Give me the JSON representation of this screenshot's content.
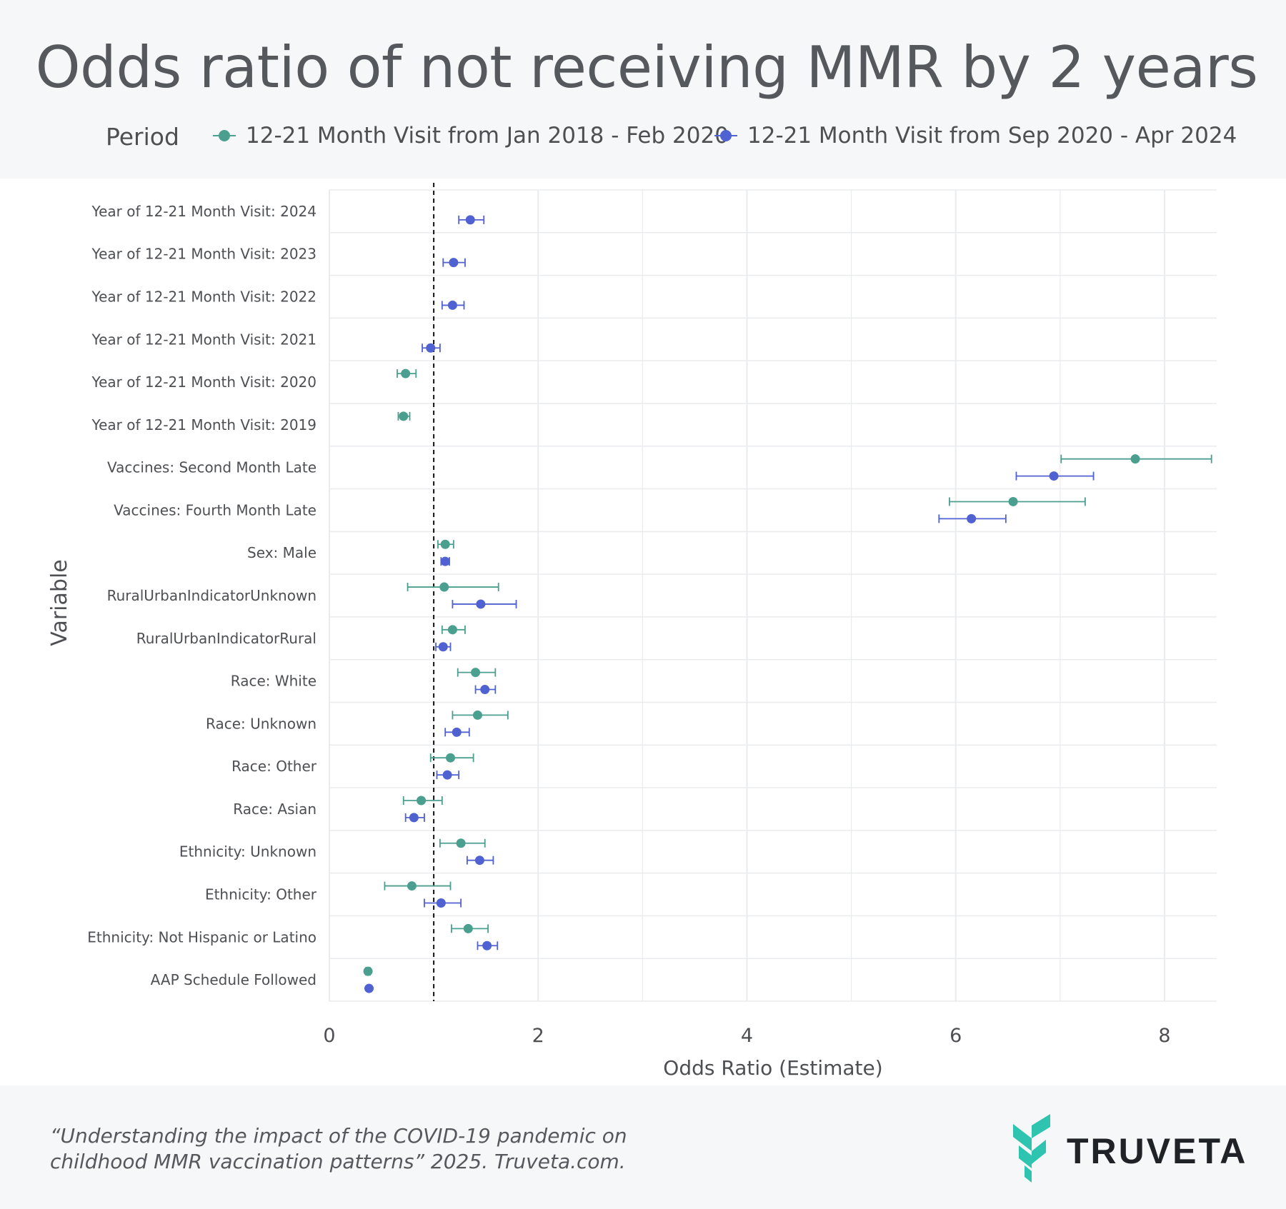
{
  "title": "Odds ratio of not receiving MMR by 2 years",
  "legend": {
    "title": "Period",
    "series_a_label": "12-21 Month Visit from Jan 2018 - Feb 2020",
    "series_b_label": "12-21 Month Visit from Sep 2020 - Apr 2024"
  },
  "colors": {
    "series_a": "#4b9f8f",
    "series_b": "#5061d2",
    "reference_line": "#111111",
    "grid": "#e9ebee"
  },
  "chart_data": {
    "type": "scatter",
    "subtype": "forest-plot",
    "title": "Odds ratio of not receiving MMR by 2 years",
    "xlabel": "Odds Ratio (Estimate)",
    "ylabel": "Variable",
    "xlim": [
      0,
      8.5
    ],
    "xticks": [
      0,
      2,
      4,
      6,
      8
    ],
    "reference_x": 1,
    "grid": true,
    "legend_position": "top",
    "categories": [
      "Year of 12-21 Month Visit: 2024",
      "Year of 12-21 Month Visit: 2023",
      "Year of 12-21 Month Visit: 2022",
      "Year of 12-21 Month Visit: 2021",
      "Year of 12-21 Month Visit: 2020",
      "Year of 12-21 Month Visit: 2019",
      "Vaccines: Second Month Late",
      "Vaccines: Fourth Month Late",
      "Sex: Male",
      "RuralUrbanIndicatorUnknown",
      "RuralUrbanIndicatorRural",
      "Race: White",
      "Race: Unknown",
      "Race: Other",
      "Race: Asian",
      "Ethnicity: Unknown",
      "Ethnicity: Other",
      "Ethnicity: Not Hispanic or Latino",
      "AAP Schedule Followed"
    ],
    "series": [
      {
        "name": "12-21 Month Visit from Jan 2018 - Feb 2020",
        "points": [
          {
            "category": "Year of 12-21 Month Visit: 2020",
            "estimate": 0.73,
            "low": 0.65,
            "high": 0.83
          },
          {
            "category": "Year of 12-21 Month Visit: 2019",
            "estimate": 0.71,
            "low": 0.66,
            "high": 0.77
          },
          {
            "category": "Vaccines: Second Month Late",
            "estimate": 7.72,
            "low": 7.01,
            "high": 8.45
          },
          {
            "category": "Vaccines: Fourth Month Late",
            "estimate": 6.55,
            "low": 5.94,
            "high": 7.24
          },
          {
            "category": "Sex: Male",
            "estimate": 1.11,
            "low": 1.04,
            "high": 1.19
          },
          {
            "category": "RuralUrbanIndicatorUnknown",
            "estimate": 1.1,
            "low": 0.75,
            "high": 1.62
          },
          {
            "category": "RuralUrbanIndicatorRural",
            "estimate": 1.18,
            "low": 1.08,
            "high": 1.3
          },
          {
            "category": "Race: White",
            "estimate": 1.4,
            "low": 1.23,
            "high": 1.59
          },
          {
            "category": "Race: Unknown",
            "estimate": 1.42,
            "low": 1.18,
            "high": 1.71
          },
          {
            "category": "Race: Other",
            "estimate": 1.16,
            "low": 0.97,
            "high": 1.38
          },
          {
            "category": "Race: Asian",
            "estimate": 0.88,
            "low": 0.71,
            "high": 1.08
          },
          {
            "category": "Ethnicity: Unknown",
            "estimate": 1.26,
            "low": 1.06,
            "high": 1.49
          },
          {
            "category": "Ethnicity: Other",
            "estimate": 0.79,
            "low": 0.53,
            "high": 1.16
          },
          {
            "category": "Ethnicity: Not Hispanic or Latino",
            "estimate": 1.33,
            "low": 1.17,
            "high": 1.52
          },
          {
            "category": "AAP Schedule Followed",
            "estimate": 0.37,
            "low": 0.35,
            "high": 0.39
          }
        ]
      },
      {
        "name": "12-21 Month Visit from Sep 2020 - Apr 2024",
        "points": [
          {
            "category": "Year of 12-21 Month Visit: 2024",
            "estimate": 1.35,
            "low": 1.24,
            "high": 1.48
          },
          {
            "category": "Year of 12-21 Month Visit: 2023",
            "estimate": 1.19,
            "low": 1.09,
            "high": 1.3
          },
          {
            "category": "Year of 12-21 Month Visit: 2022",
            "estimate": 1.18,
            "low": 1.08,
            "high": 1.29
          },
          {
            "category": "Year of 12-21 Month Visit: 2021",
            "estimate": 0.97,
            "low": 0.89,
            "high": 1.06
          },
          {
            "category": "Vaccines: Second Month Late",
            "estimate": 6.94,
            "low": 6.58,
            "high": 7.32
          },
          {
            "category": "Vaccines: Fourth Month Late",
            "estimate": 6.15,
            "low": 5.84,
            "high": 6.48
          },
          {
            "category": "Sex: Male",
            "estimate": 1.11,
            "low": 1.07,
            "high": 1.15
          },
          {
            "category": "RuralUrbanIndicatorUnknown",
            "estimate": 1.45,
            "low": 1.18,
            "high": 1.79
          },
          {
            "category": "RuralUrbanIndicatorRural",
            "estimate": 1.09,
            "low": 1.02,
            "high": 1.16
          },
          {
            "category": "Race: White",
            "estimate": 1.49,
            "low": 1.4,
            "high": 1.59
          },
          {
            "category": "Race: Unknown",
            "estimate": 1.22,
            "low": 1.11,
            "high": 1.34
          },
          {
            "category": "Race: Other",
            "estimate": 1.13,
            "low": 1.03,
            "high": 1.24
          },
          {
            "category": "Race: Asian",
            "estimate": 0.81,
            "low": 0.73,
            "high": 0.91
          },
          {
            "category": "Ethnicity: Unknown",
            "estimate": 1.44,
            "low": 1.32,
            "high": 1.57
          },
          {
            "category": "Ethnicity: Other",
            "estimate": 1.07,
            "low": 0.91,
            "high": 1.26
          },
          {
            "category": "Ethnicity: Not Hispanic or Latino",
            "estimate": 1.51,
            "low": 1.42,
            "high": 1.61
          },
          {
            "category": "AAP Schedule Followed",
            "estimate": 0.38,
            "low": 0.37,
            "high": 0.39
          }
        ]
      }
    ]
  },
  "footer": {
    "citation_line1": "“Understanding the impact of the COVID-19 pandemic on",
    "citation_line2": "childhood MMR vaccination patterns” 2025. Truveta.com.",
    "logo_text": "TRUVETA"
  }
}
